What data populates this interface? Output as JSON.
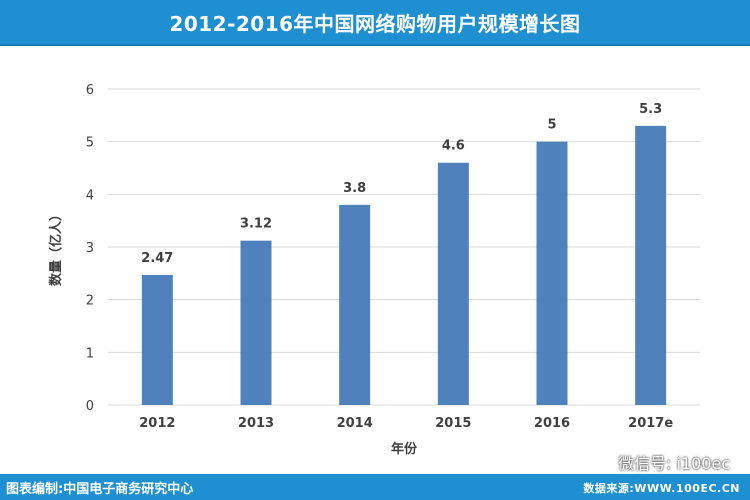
{
  "header": {
    "title": "2012-2016年中国网络购物用户规模增长图"
  },
  "footer": {
    "left": "图表编制:中国电子商务研究中心",
    "right": "数据来源:WWW.100EC.CN"
  },
  "watermark": {
    "text": "微信号: i100ec",
    "icon": "wechat-icon"
  },
  "colors": {
    "bar": "#4f81bd",
    "header": "#1e8fd0",
    "grid": "#d9d9d9"
  },
  "chart_data": {
    "type": "bar",
    "title": "2012-2016年中国网络购物用户规模增长图",
    "xlabel": "年份",
    "ylabel": "数量（亿人）",
    "categories": [
      "2012",
      "2013",
      "2014",
      "2015",
      "2016",
      "2017e"
    ],
    "values": [
      2.47,
      3.12,
      3.8,
      4.6,
      5,
      5.3
    ],
    "value_labels": [
      "2.47",
      "3.12",
      "3.8",
      "4.6",
      "5",
      "5.3"
    ],
    "ylim": [
      0,
      6
    ],
    "yticks": [
      0,
      1,
      2,
      3,
      4,
      5,
      6
    ],
    "grid": true,
    "legend": "none"
  }
}
